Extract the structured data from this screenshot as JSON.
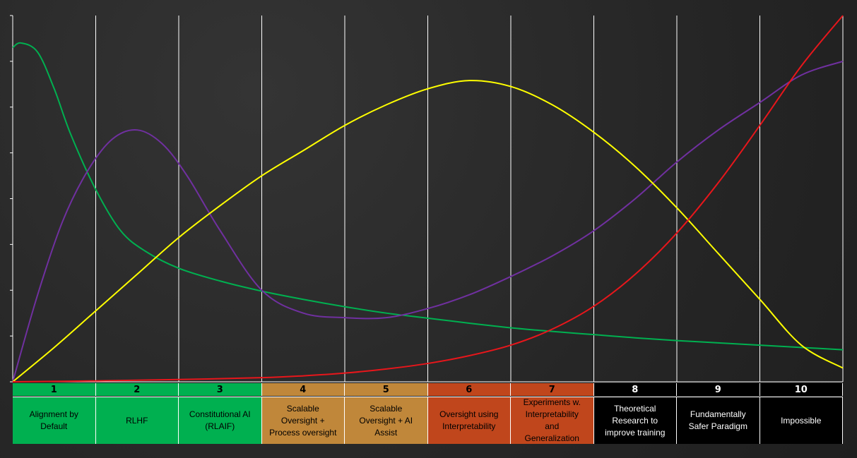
{
  "chart_data": {
    "type": "line",
    "categories": [
      "1",
      "2",
      "3",
      "4",
      "5",
      "6",
      "7",
      "8",
      "9",
      "10"
    ],
    "category_labels": [
      "Alignment by\nDefault",
      "RLHF",
      "Constitutional AI\n(RLAIF)",
      "Scalable\nOversight +\nProcess oversight",
      "Scalable\nOversight + AI\nAssist",
      "Oversight using\nInterpretability",
      "Experiments w.\nInterpretability\nand\nGeneralization",
      "Theoretical\nResearch to\nimprove training",
      "Fundamentally\nSafer Paradigm",
      "Impossible"
    ],
    "category_colors": [
      "#00b050",
      "#00b050",
      "#00b050",
      "#c0873a",
      "#c0873a",
      "#c0461c",
      "#c0461c",
      "#000000",
      "#000000",
      "#000000"
    ],
    "category_text_colors": [
      "#000000",
      "#000000",
      "#000000",
      "#000000",
      "#000000",
      "#000000",
      "#000000",
      "#ffffff",
      "#ffffff",
      "#ffffff"
    ],
    "xlim": [
      0,
      10
    ],
    "ylim": [
      0,
      8
    ],
    "grid": true,
    "series": [
      {
        "color": "#00b050",
        "x": [
          0,
          0.1,
          0.3,
          0.5,
          0.7,
          1.0,
          1.3,
          1.6,
          2.0,
          2.5,
          3.0,
          3.5,
          4.0,
          4.5,
          5.0,
          5.5,
          6.0,
          6.5,
          7.0,
          7.5,
          8.0,
          8.5,
          9.0,
          9.5,
          10.0
        ],
        "y": [
          7.3,
          7.4,
          7.2,
          6.4,
          5.4,
          4.2,
          3.3,
          2.85,
          2.48,
          2.2,
          1.98,
          1.8,
          1.64,
          1.5,
          1.39,
          1.28,
          1.18,
          1.1,
          1.03,
          0.96,
          0.9,
          0.85,
          0.8,
          0.75,
          0.7
        ]
      },
      {
        "color": "#7030a0",
        "x": [
          0,
          0.3,
          0.6,
          0.9,
          1.2,
          1.5,
          1.8,
          2.1,
          2.5,
          3.0,
          3.5,
          4.0,
          4.5,
          5.0,
          5.5,
          6.0,
          6.5,
          7.0,
          7.5,
          8.0,
          8.5,
          9.0,
          9.5,
          10.0
        ],
        "y": [
          0,
          1.9,
          3.5,
          4.6,
          5.3,
          5.5,
          5.2,
          4.5,
          3.3,
          2.0,
          1.5,
          1.4,
          1.4,
          1.6,
          1.9,
          2.3,
          2.75,
          3.3,
          4.0,
          4.8,
          5.5,
          6.1,
          6.7,
          7.0
        ]
      },
      {
        "color": "#ffff00",
        "x": [
          0,
          0.5,
          1.0,
          1.5,
          2.0,
          2.5,
          3.0,
          3.5,
          4.0,
          4.5,
          5.0,
          5.5,
          6.0,
          6.5,
          7.0,
          7.5,
          8.0,
          8.5,
          9.0,
          9.5,
          10.0
        ],
        "y": [
          0,
          0.75,
          1.55,
          2.35,
          3.15,
          3.85,
          4.5,
          5.05,
          5.6,
          6.05,
          6.4,
          6.58,
          6.45,
          6.05,
          5.45,
          4.7,
          3.8,
          2.8,
          1.8,
          0.8,
          0.3
        ]
      },
      {
        "color": "#e8161b",
        "x": [
          0,
          1.0,
          2.0,
          3.0,
          3.5,
          4.0,
          4.5,
          5.0,
          5.5,
          6.0,
          6.5,
          7.0,
          7.5,
          8.0,
          8.5,
          9.0,
          9.5,
          10.0
        ],
        "y": [
          0,
          0.02,
          0.05,
          0.09,
          0.13,
          0.19,
          0.28,
          0.4,
          0.57,
          0.8,
          1.15,
          1.65,
          2.35,
          3.25,
          4.35,
          5.6,
          6.9,
          8.0
        ]
      }
    ]
  }
}
